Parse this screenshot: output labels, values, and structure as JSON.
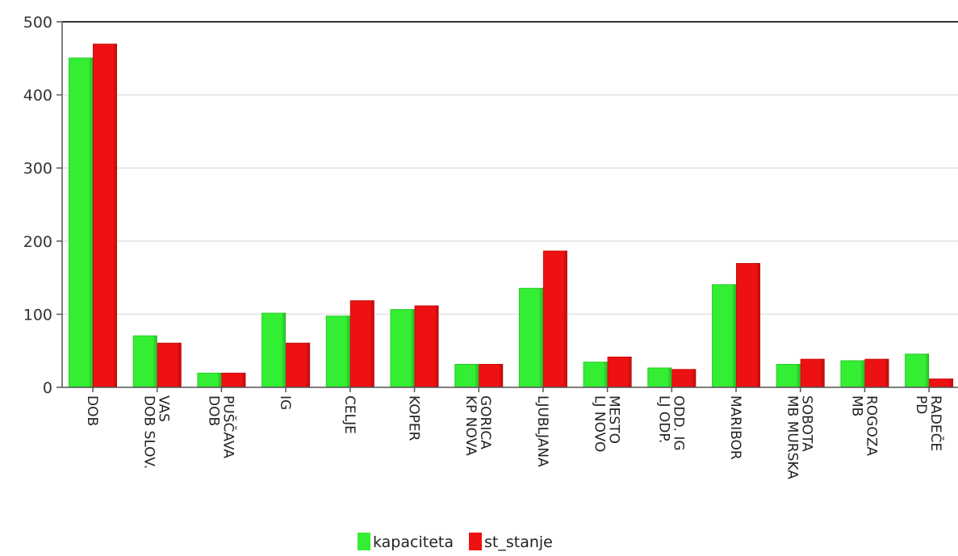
{
  "chart_data": {
    "type": "bar",
    "categories": [
      "DOB",
      "DOB SLOV. VAS",
      "DOB PUŠČAVA",
      "IG",
      "CELJE",
      "KOPER",
      "KP NOVA GORICA",
      "LJUBLJANA",
      "LJ NOVO MESTO",
      "LJ ODP. ODD. IG",
      "MARIBOR",
      "MB MURSKA SOBOTA",
      "MB ROGOZA",
      "PD RADEČE"
    ],
    "category_lines": [
      [
        "DOB"
      ],
      [
        "DOB SLOV.",
        "VAS"
      ],
      [
        "DOB",
        "PUŠČAVA"
      ],
      [
        "IG"
      ],
      [
        "CELJE"
      ],
      [
        "KOPER"
      ],
      [
        "KP NOVA",
        "GORICA"
      ],
      [
        "LJUBLJANA"
      ],
      [
        "LJ NOVO",
        "MESTO"
      ],
      [
        "LJ ODP.",
        "ODD. IG"
      ],
      [
        "MARIBOR"
      ],
      [
        "MB MURSKA",
        "SOBOTA"
      ],
      [
        "MB",
        "ROGOZA"
      ],
      [
        "PD",
        "RADEČE"
      ]
    ],
    "series": [
      {
        "name": "kapaciteta",
        "color": "#33ee33",
        "values": [
          451,
          71,
          20,
          102,
          98,
          107,
          32,
          136,
          35,
          27,
          141,
          32,
          37,
          46
        ]
      },
      {
        "name": "st_stanje",
        "color": "#ee1111",
        "values": [
          470,
          61,
          20,
          61,
          119,
          112,
          32,
          187,
          42,
          25,
          170,
          39,
          39,
          12
        ]
      }
    ],
    "y_ticks": [
      0,
      100,
      200,
      300,
      400,
      500
    ],
    "ylim": [
      0,
      500
    ],
    "grid": true,
    "legend_position": "bottom-center"
  }
}
